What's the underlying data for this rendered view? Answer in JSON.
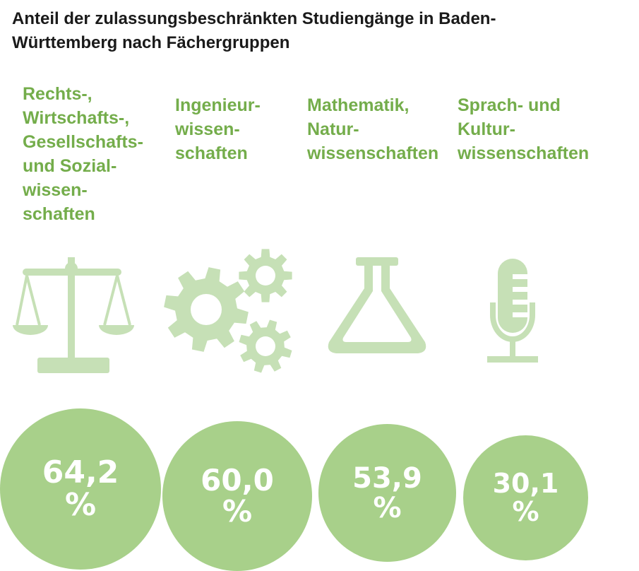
{
  "title": "Anteil der zulassungsbeschränkten Studiengänge in Baden-\nWürttemberg nach Fächergruppen",
  "colors": {
    "label": "#74ad4b",
    "icon": "#c6e0b6",
    "bubble": "#a8d08a",
    "value_text": "#ffffff"
  },
  "chart_data": {
    "type": "bubble",
    "title": "Anteil der zulassungsbeschränkten Studiengänge in Baden-Württemberg nach Fächergruppen",
    "unit": "%",
    "categories": [
      "Rechts-,\nWirtschafts-,\nGesellschafts-\nund Sozial-\nwissen-\nschaften",
      "Ingenieur-\nwissen-\nschaften",
      "Mathematik,\nNatur-\nwissenschaften",
      "Sprach- und\nKultur-\nwissenschaften"
    ],
    "values": [
      64.2,
      60.0,
      53.9,
      30.1
    ],
    "value_labels": [
      "64,2",
      "60,0",
      "53,9",
      "30,1"
    ],
    "icons": [
      "scales-of-justice-icon",
      "gears-icon",
      "flask-icon",
      "microphone-icon"
    ]
  }
}
